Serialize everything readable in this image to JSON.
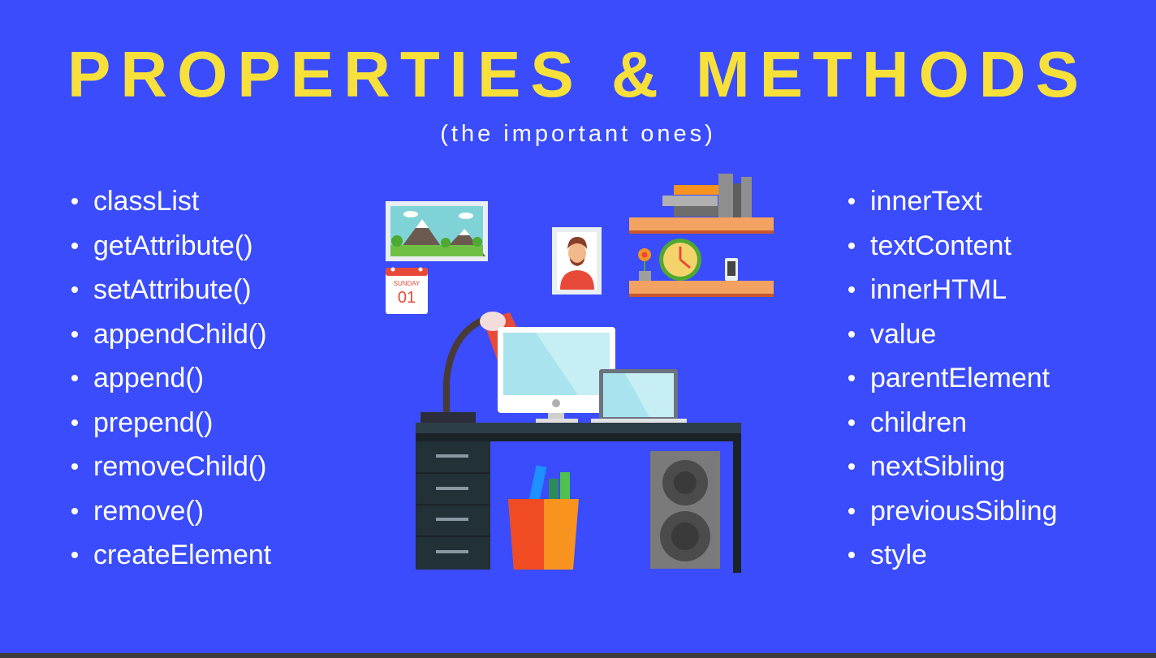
{
  "title": "PROPERTIES & METHODS",
  "subtitle": "(the important ones)",
  "left_list": [
    "classList",
    "getAttribute()",
    "setAttribute()",
    "appendChild()",
    "append()",
    "prepend()",
    "removeChild()",
    "remove()",
    "createElement"
  ],
  "right_list": [
    "innerText",
    "textContent",
    "innerHTML",
    "value",
    "parentElement",
    "children",
    "nextSibling",
    "previousSibling",
    "style"
  ],
  "calendar": {
    "day": "SUNDAY",
    "date": "01"
  },
  "colors": {
    "background": "#3a4cfb",
    "title": "#f7e03a",
    "text": "#ffffff"
  }
}
